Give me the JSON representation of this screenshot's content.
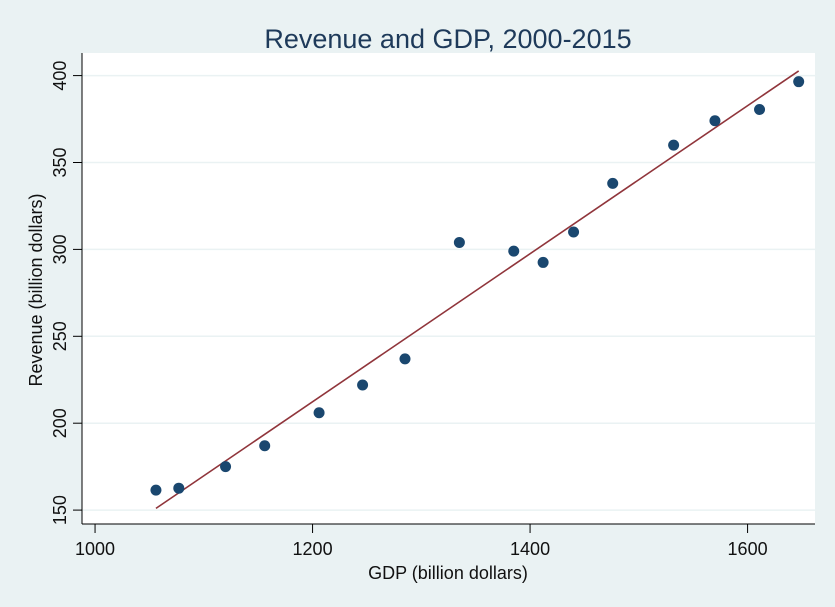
{
  "chart_data": {
    "type": "scatter",
    "title": "Revenue and GDP, 2000-2015",
    "xlabel": "GDP (billion dollars)",
    "ylabel": "Revenue (billion dollars)",
    "xlim": [
      988,
      1662
    ],
    "ylim": [
      142,
      413
    ],
    "xticks": [
      1000,
      1200,
      1400,
      1600
    ],
    "yticks": [
      150,
      200,
      250,
      300,
      350,
      400
    ],
    "grid": true,
    "legend": "none",
    "colors": {
      "points": "#1a476f",
      "fit_line": "#90353b",
      "background": "#eaf2f3",
      "plot_background": "#ffffff",
      "grid": "#eaf2f3"
    },
    "points": [
      {
        "x": 1056,
        "y": 161.5
      },
      {
        "x": 1077,
        "y": 162.6
      },
      {
        "x": 1120,
        "y": 175
      },
      {
        "x": 1156,
        "y": 187
      },
      {
        "x": 1206,
        "y": 206
      },
      {
        "x": 1246,
        "y": 222
      },
      {
        "x": 1285,
        "y": 237
      },
      {
        "x": 1335,
        "y": 304
      },
      {
        "x": 1385,
        "y": 299
      },
      {
        "x": 1412,
        "y": 292.5
      },
      {
        "x": 1440,
        "y": 310
      },
      {
        "x": 1476,
        "y": 338
      },
      {
        "x": 1532,
        "y": 360
      },
      {
        "x": 1570,
        "y": 374
      },
      {
        "x": 1611,
        "y": 380.5
      },
      {
        "x": 1647,
        "y": 396.5
      }
    ],
    "fit_line": {
      "x": [
        1056,
        1647
      ],
      "y": [
        151,
        402.7
      ]
    }
  }
}
